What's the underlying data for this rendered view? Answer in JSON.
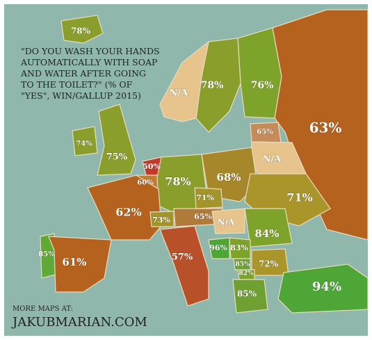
{
  "title_lines": [
    "\"DO YOU WASH YOUR HANDS",
    "AUTOMATICALLY WITH SOAP",
    "AND WATER AFTER GOING",
    "TO THE TOILET?\" (% OF",
    "\"YES\", WIN/GALLUP 2015)"
  ],
  "regions": [
    {
      "label": "78%"
    },
    {
      "label": "76%"
    },
    {
      "label": "78%"
    },
    {
      "label": "N/A"
    },
    {
      "label": "63%"
    },
    {
      "label": "65%"
    },
    {
      "label": "74%"
    },
    {
      "label": "75%"
    },
    {
      "label": "50%"
    },
    {
      "label": "60%"
    },
    {
      "label": "N/A"
    },
    {
      "label": "78%"
    },
    {
      "label": "68%"
    },
    {
      "label": "71%"
    },
    {
      "label": "71%"
    },
    {
      "label": "62%"
    },
    {
      "label": "73%"
    },
    {
      "label": "65%"
    },
    {
      "label": "N/A"
    },
    {
      "label": "84%"
    },
    {
      "label": "85%"
    },
    {
      "label": "61%"
    },
    {
      "label": "57%"
    },
    {
      "label": "96%"
    },
    {
      "label": "83%"
    },
    {
      "label": "85%"
    },
    {
      "label": "72%"
    },
    {
      "label": "82%"
    },
    {
      "label": "85%"
    },
    {
      "label": "94%"
    }
  ],
  "footer": {
    "small": "MORE MAPS AT:",
    "site": "JAKUBMARIAN.COM"
  }
}
